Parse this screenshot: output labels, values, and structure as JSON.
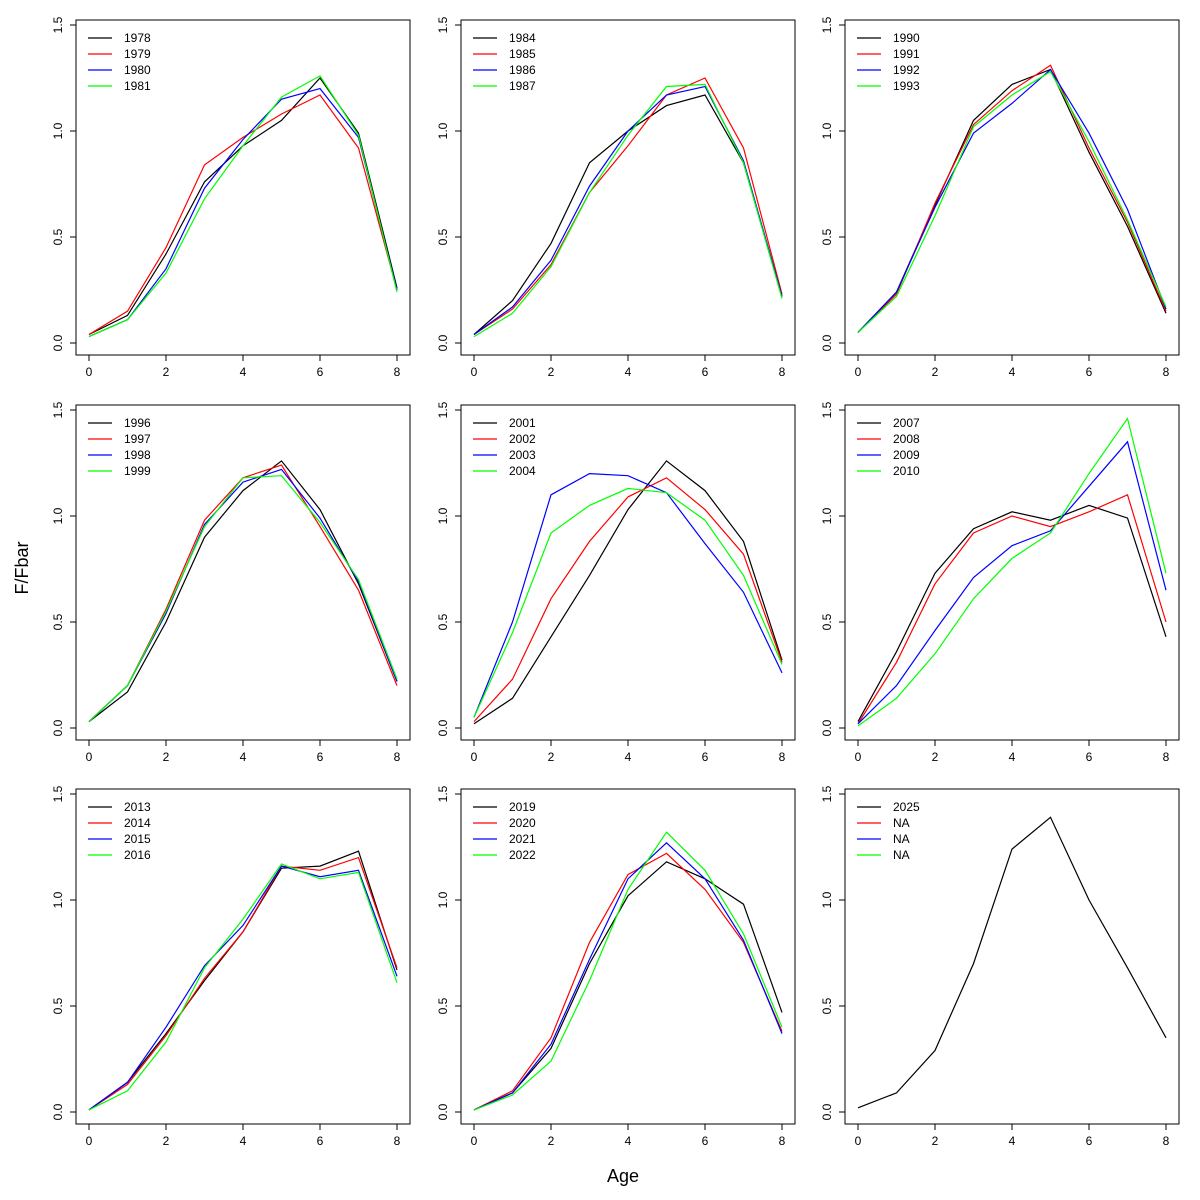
{
  "chart_data": {
    "type": "line",
    "layout": "3x3 panels",
    "xlabel": "Age",
    "ylabel": "F/Fbar",
    "xlim": [
      0,
      8
    ],
    "ylim": [
      0,
      1.5
    ],
    "x": [
      0,
      1,
      2,
      3,
      4,
      5,
      6,
      7,
      8
    ],
    "x_ticks": [
      "0",
      "2",
      "4",
      "6",
      "8"
    ],
    "y_ticks": [
      "0.0",
      "0.5",
      "1.0",
      "1.5"
    ],
    "series_colors": [
      "#000000",
      "#ff0000",
      "#0000ff",
      "#00ff00"
    ],
    "legend_placement": "top-left",
    "panels": [
      {
        "series": [
          {
            "name": "1978",
            "values": [
              0.04,
              0.13,
              0.42,
              0.76,
              0.93,
              1.05,
              1.25,
              0.99,
              0.26
            ]
          },
          {
            "name": "1979",
            "values": [
              0.04,
              0.15,
              0.45,
              0.84,
              0.97,
              1.08,
              1.17,
              0.92,
              0.25
            ]
          },
          {
            "name": "1980",
            "values": [
              0.03,
              0.11,
              0.35,
              0.73,
              0.96,
              1.15,
              1.2,
              0.97,
              0.25
            ]
          },
          {
            "name": "1981",
            "values": [
              0.03,
              0.11,
              0.33,
              0.68,
              0.93,
              1.16,
              1.26,
              0.98,
              0.24
            ]
          }
        ]
      },
      {
        "series": [
          {
            "name": "1984",
            "values": [
              0.04,
              0.2,
              0.47,
              0.85,
              1.0,
              1.12,
              1.17,
              0.85,
              0.22
            ]
          },
          {
            "name": "1985",
            "values": [
              0.04,
              0.16,
              0.37,
              0.71,
              0.93,
              1.17,
              1.25,
              0.92,
              0.23
            ]
          },
          {
            "name": "1986",
            "values": [
              0.04,
              0.17,
              0.39,
              0.74,
              1.0,
              1.17,
              1.21,
              0.86,
              0.22
            ]
          },
          {
            "name": "1987",
            "values": [
              0.03,
              0.14,
              0.36,
              0.71,
              0.98,
              1.21,
              1.22,
              0.85,
              0.21
            ]
          }
        ]
      },
      {
        "series": [
          {
            "name": "1990",
            "values": [
              0.05,
              0.24,
              0.65,
              1.05,
              1.22,
              1.29,
              0.9,
              0.55,
              0.14
            ]
          },
          {
            "name": "1991",
            "values": [
              0.05,
              0.23,
              0.66,
              1.03,
              1.19,
              1.31,
              0.92,
              0.57,
              0.15
            ]
          },
          {
            "name": "1992",
            "values": [
              0.05,
              0.24,
              0.64,
              0.99,
              1.13,
              1.29,
              0.99,
              0.63,
              0.16
            ]
          },
          {
            "name": "1993",
            "values": [
              0.05,
              0.22,
              0.6,
              1.02,
              1.17,
              1.28,
              0.95,
              0.58,
              0.17
            ]
          }
        ]
      },
      {
        "series": [
          {
            "name": "1996",
            "values": [
              0.03,
              0.17,
              0.5,
              0.9,
              1.12,
              1.26,
              1.03,
              0.68,
              0.22
            ]
          },
          {
            "name": "1997",
            "values": [
              0.03,
              0.2,
              0.56,
              0.98,
              1.18,
              1.24,
              0.95,
              0.65,
              0.2
            ]
          },
          {
            "name": "1998",
            "values": [
              0.03,
              0.2,
              0.54,
              0.96,
              1.16,
              1.22,
              0.99,
              0.69,
              0.22
            ]
          },
          {
            "name": "1999",
            "values": [
              0.03,
              0.2,
              0.55,
              0.95,
              1.18,
              1.19,
              0.97,
              0.7,
              0.23
            ]
          }
        ]
      },
      {
        "series": [
          {
            "name": "2001",
            "values": [
              0.02,
              0.14,
              0.43,
              0.72,
              1.03,
              1.26,
              1.12,
              0.88,
              0.32
            ]
          },
          {
            "name": "2002",
            "values": [
              0.03,
              0.23,
              0.61,
              0.88,
              1.09,
              1.18,
              1.03,
              0.82,
              0.31
            ]
          },
          {
            "name": "2003",
            "values": [
              0.05,
              0.5,
              1.1,
              1.2,
              1.19,
              1.11,
              0.87,
              0.64,
              0.26
            ]
          },
          {
            "name": "2004",
            "values": [
              0.05,
              0.45,
              0.92,
              1.05,
              1.13,
              1.11,
              0.98,
              0.72,
              0.3
            ]
          }
        ]
      },
      {
        "series": [
          {
            "name": "2007",
            "values": [
              0.03,
              0.36,
              0.73,
              0.94,
              1.02,
              0.98,
              1.05,
              0.99,
              0.43
            ]
          },
          {
            "name": "2008",
            "values": [
              0.02,
              0.31,
              0.68,
              0.92,
              1.0,
              0.95,
              1.02,
              1.1,
              0.5
            ]
          },
          {
            "name": "2009",
            "values": [
              0.02,
              0.2,
              0.46,
              0.71,
              0.86,
              0.93,
              1.14,
              1.35,
              0.65
            ]
          },
          {
            "name": "2010",
            "values": [
              0.01,
              0.14,
              0.35,
              0.61,
              0.8,
              0.92,
              1.2,
              1.46,
              0.73
            ]
          }
        ]
      },
      {
        "series": [
          {
            "name": "2013",
            "values": [
              0.01,
              0.14,
              0.37,
              0.62,
              0.85,
              1.15,
              1.16,
              1.23,
              0.67
            ]
          },
          {
            "name": "2014",
            "values": [
              0.01,
              0.13,
              0.36,
              0.63,
              0.85,
              1.16,
              1.14,
              1.2,
              0.68
            ]
          },
          {
            "name": "2015",
            "values": [
              0.01,
              0.14,
              0.4,
              0.69,
              0.88,
              1.16,
              1.11,
              1.14,
              0.64
            ]
          },
          {
            "name": "2016",
            "values": [
              0.01,
              0.1,
              0.33,
              0.68,
              0.91,
              1.17,
              1.1,
              1.13,
              0.61
            ]
          }
        ]
      },
      {
        "series": [
          {
            "name": "2019",
            "values": [
              0.01,
              0.09,
              0.3,
              0.7,
              1.02,
              1.18,
              1.1,
              0.98,
              0.47
            ]
          },
          {
            "name": "2020",
            "values": [
              0.01,
              0.1,
              0.35,
              0.8,
              1.12,
              1.22,
              1.05,
              0.8,
              0.38
            ]
          },
          {
            "name": "2021",
            "values": [
              0.01,
              0.09,
              0.32,
              0.72,
              1.1,
              1.27,
              1.1,
              0.81,
              0.37
            ]
          },
          {
            "name": "2022",
            "values": [
              0.01,
              0.08,
              0.24,
              0.62,
              1.05,
              1.32,
              1.14,
              0.84,
              0.4
            ]
          }
        ]
      },
      {
        "series": [
          {
            "name": "2025",
            "values": [
              0.02,
              0.09,
              0.29,
              0.7,
              1.24,
              1.39,
              1.0,
              0.68,
              0.35
            ]
          },
          {
            "name": "NA",
            "values": null
          },
          {
            "name": "NA",
            "values": null
          },
          {
            "name": "NA",
            "values": null
          }
        ]
      }
    ]
  }
}
